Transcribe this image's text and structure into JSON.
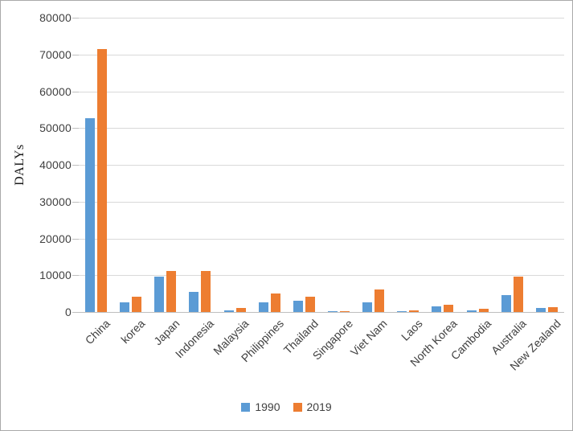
{
  "figure": {
    "y_axis_title": "DALYs"
  },
  "chart_data": {
    "type": "bar",
    "title": "",
    "xlabel": "",
    "ylabel": "DALYs",
    "categories": [
      "China",
      "korea",
      "Japan",
      "Indonesia",
      "Malaysia",
      "Philippines",
      "Thailand",
      "Singapore",
      "Viet Nam",
      "Laos",
      "North Korea",
      "Cambodia",
      "Australia",
      "New Zealand"
    ],
    "series": [
      {
        "name": "1990",
        "color": "#5B9BD5",
        "values": [
          52700,
          2600,
          9700,
          5500,
          500,
          2600,
          3100,
          100,
          2700,
          100,
          1500,
          500,
          4700,
          1000
        ]
      },
      {
        "name": "2019",
        "color": "#ED7D31",
        "values": [
          71500,
          4100,
          11100,
          11200,
          1200,
          5100,
          4100,
          300,
          6100,
          500,
          1900,
          900,
          9600,
          1400
        ]
      }
    ],
    "ylim": [
      0,
      80000
    ],
    "ytick_step": 10000,
    "grid": true,
    "legend_position": "bottom",
    "gridline_color": "#d9d9d9",
    "axis_text_color": "#404040"
  }
}
